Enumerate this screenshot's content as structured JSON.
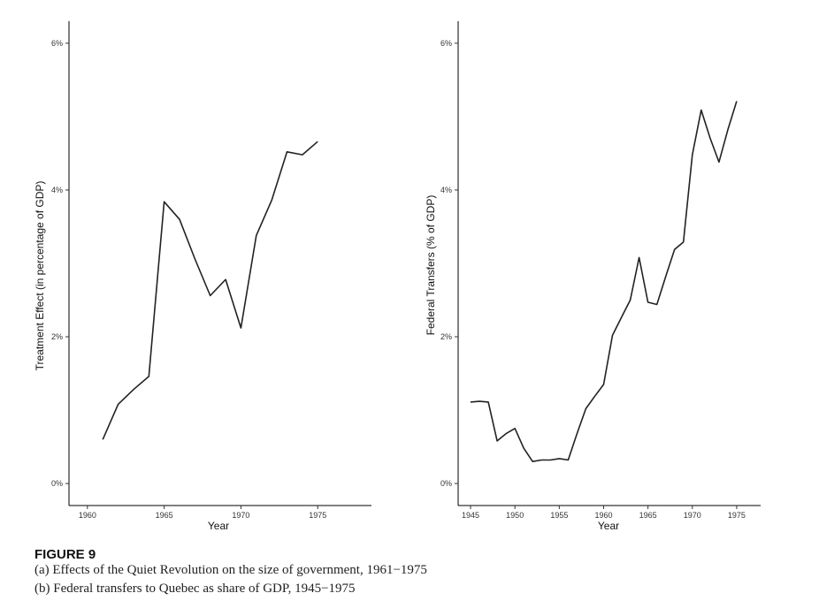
{
  "figure": {
    "label": "FIGURE 9",
    "caption_a": "(a) Effects of the Quiet Revolution on the size of government, 1961−1975",
    "caption_b": "(b) Federal transfers to Quebec as share of GDP, 1945−1975"
  },
  "chart_data": [
    {
      "type": "line",
      "xlabel": "Year",
      "ylabel": "Treatment Effect (in percentage of GDP)",
      "xlim": [
        1958.8,
        1978.5
      ],
      "ylim": [
        -0.003,
        0.063
      ],
      "xticks": [
        1960,
        1965,
        1970,
        1975
      ],
      "yticks": [
        0,
        0.02,
        0.04,
        0.06
      ],
      "ytick_labels": [
        "0%",
        "2%",
        "4%",
        "6%"
      ],
      "grid": false,
      "series": [
        {
          "x": [
            1961,
            1962,
            1963,
            1964,
            1965,
            1966,
            1967,
            1968,
            1969,
            1970,
            1971,
            1972,
            1973,
            1974,
            1975
          ],
          "y": [
            0.006,
            0.0108,
            0.0128,
            0.0146,
            0.0384,
            0.036,
            0.0306,
            0.0256,
            0.0278,
            0.0212,
            0.0338,
            0.0386,
            0.0452,
            0.0448,
            0.0466
          ]
        }
      ]
    },
    {
      "type": "line",
      "xlabel": "Year",
      "ylabel": "Federal Transfers (% of GDP)",
      "xlim": [
        1943.6,
        1977.7
      ],
      "ylim": [
        -0.003,
        0.063
      ],
      "xticks": [
        1945,
        1950,
        1955,
        1960,
        1965,
        1970,
        1975
      ],
      "yticks": [
        0,
        0.02,
        0.04,
        0.06
      ],
      "ytick_labels": [
        "0%",
        "2%",
        "4%",
        "6%"
      ],
      "grid": false,
      "series": [
        {
          "x": [
            1945,
            1946,
            1947,
            1948,
            1949,
            1950,
            1951,
            1952,
            1953,
            1954,
            1955,
            1956,
            1957,
            1958,
            1959,
            1960,
            1961,
            1962,
            1963,
            1964,
            1965,
            1966,
            1967,
            1968,
            1969,
            1970,
            1971,
            1972,
            1973,
            1974,
            1975
          ],
          "y": [
            0.0111,
            0.0112,
            0.0111,
            0.0058,
            0.0068,
            0.0075,
            0.0048,
            0.003,
            0.0032,
            0.0032,
            0.0034,
            0.0032,
            0.0068,
            0.0102,
            0.0119,
            0.0135,
            0.0202,
            0.0226,
            0.025,
            0.0308,
            0.0247,
            0.0244,
            0.0282,
            0.0319,
            0.0329,
            0.0448,
            0.0509,
            0.0471,
            0.0438,
            0.0482,
            0.0521
          ]
        }
      ]
    }
  ]
}
